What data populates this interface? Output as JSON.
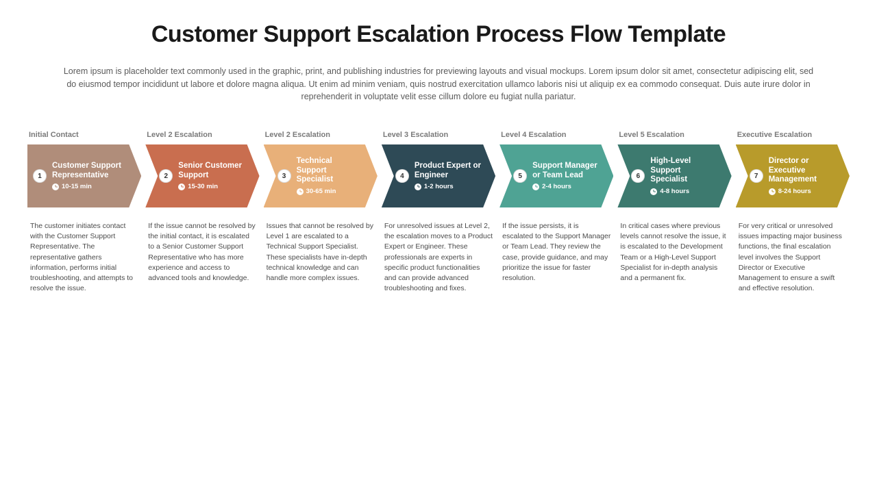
{
  "title": "Customer Support Escalation Process Flow Template",
  "subtitle": "Lorem ipsum is placeholder text commonly used in the graphic, print, and publishing industries for previewing layouts and visual mockups. Lorem ipsum dolor sit amet, consectetur adipiscing elit, sed do eiusmod tempor incididunt ut labore et dolore magna aliqua. Ut enim ad minim veniam, quis nostrud exercitation ullamco laboris nisi ut aliquip ex ea commodo consequat. Duis aute irure dolor in reprehenderit in voluptate velit esse cillum dolore eu fugiat nulla pariatur.",
  "steps": [
    {
      "level": "Initial Contact",
      "number": "1",
      "role": "Customer Support Representative",
      "time": "10-15 min",
      "color": "#b08d7a",
      "clock_color": "#b08d7a",
      "description": "The customer initiates contact with the Customer Support Representative. The representative gathers information, performs initial troubleshooting, and attempts to resolve the issue."
    },
    {
      "level": "Level 2 Escalation",
      "number": "2",
      "role": "Senior Customer Support",
      "time": "15-30 min",
      "color": "#c96e4f",
      "clock_color": "#c96e4f",
      "description": "If the issue cannot be resolved by the initial contact, it is escalated to a Senior Customer Support Representative who has more experience and access to advanced tools and knowledge."
    },
    {
      "level": "Level 2 Escalation",
      "number": "3",
      "role": "Technical Support Specialist",
      "time": "30-65 min",
      "color": "#e8b079",
      "clock_color": "#e8b079",
      "description": "Issues that cannot be resolved by Level 1 are escalated to a Technical Support Specialist. These specialists have in-depth technical knowledge and can handle more complex issues."
    },
    {
      "level": "Level 3 Escalation",
      "number": "4",
      "role": "Product Expert or Engineer",
      "time": "1-2 hours",
      "color": "#2e4a56",
      "clock_color": "#2e4a56",
      "description": "For unresolved issues at Level 2, the escalation moves to a Product Expert or Engineer. These professionals are experts in specific product functionalities and can provide advanced troubleshooting and fixes."
    },
    {
      "level": "Level 4 Escalation",
      "number": "5",
      "role": "Support Manager or Team Lead",
      "time": "2-4 hours",
      "color": "#4fa394",
      "clock_color": "#4fa394",
      "description": "If the issue persists, it is escalated to the Support Manager or Team Lead. They review the case, provide guidance, and may prioritize the issue for faster resolution."
    },
    {
      "level": "Level 5 Escalation",
      "number": "6",
      "role": "High-Level Support Specialist",
      "time": "4-8 hours",
      "color": "#3d7a6f",
      "clock_color": "#3d7a6f",
      "description": "In critical cases where previous levels cannot resolve the issue, it is escalated to the Development Team or a High-Level Support Specialist for in-depth analysis and a permanent fix."
    },
    {
      "level": "Executive Escalation",
      "number": "7",
      "role": "Director or Executive Management",
      "time": "8-24 hours",
      "color": "#b89b2b",
      "clock_color": "#b89b2b",
      "description": "For very critical or unresolved issues impacting major business functions, the final escalation level involves the Support Director or Executive Management to ensure a swift and effective resolution."
    }
  ],
  "styling": {
    "type": "flowchart",
    "background_color": "#ffffff",
    "title_fontsize": 34,
    "title_color": "#1a1a1a",
    "subtitle_fontsize": 12.5,
    "subtitle_color": "#5a5a5a",
    "level_label_fontsize": 11,
    "level_label_color": "#7a7a7a",
    "role_fontsize": 11.5,
    "role_color": "#ffffff",
    "time_fontsize": 9.5,
    "desc_fontsize": 10.5,
    "desc_color": "#4a4a4a",
    "arrow_height": 92,
    "arrow_notch": 18,
    "badge_bg": "#ffffff",
    "badge_size": 20
  }
}
